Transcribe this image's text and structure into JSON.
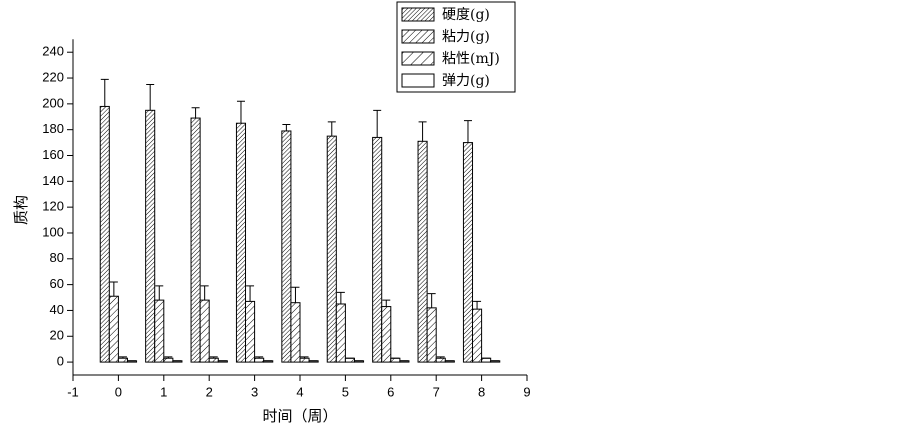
{
  "chart_data": {
    "type": "bar",
    "x_label": "时间（周）",
    "y_label": "质构",
    "categories": [
      0,
      1,
      2,
      3,
      4,
      5,
      6,
      7,
      8
    ],
    "series": [
      {
        "name": "硬度(g)",
        "color": "#000000",
        "pattern": "dense-hatch",
        "values": [
          198,
          195,
          189,
          185,
          179,
          175,
          174,
          171,
          170
        ],
        "errors": [
          21,
          20,
          8,
          17,
          5,
          11,
          21,
          15,
          17
        ]
      },
      {
        "name": "粘力(g)",
        "color": "#000000",
        "pattern": "hatch",
        "values": [
          51,
          48,
          48,
          47,
          46,
          45,
          43,
          42,
          41
        ],
        "errors": [
          11,
          11,
          11,
          12,
          12,
          9,
          5,
          11,
          6
        ]
      },
      {
        "name": "粘性(mJ)",
        "color": "#000000",
        "pattern": "wide-hatch",
        "values": [
          3,
          3,
          3,
          3,
          3,
          3,
          3,
          3,
          3
        ],
        "errors": [
          1,
          1,
          1,
          1,
          1,
          0,
          0,
          1,
          0
        ]
      },
      {
        "name": "弹力(g)",
        "color": "#000000",
        "pattern": "none",
        "values": [
          1,
          1,
          1,
          1,
          1,
          1,
          1,
          1,
          1
        ],
        "errors": [
          0,
          0,
          0,
          0,
          0,
          0,
          0,
          0,
          0
        ]
      }
    ],
    "xlim": [
      -1,
      9
    ],
    "xticks": [
      -1,
      0,
      1,
      2,
      3,
      4,
      5,
      6,
      7,
      8,
      9
    ],
    "ylim": [
      -10,
      250
    ],
    "yticks": [
      0,
      20,
      40,
      60,
      80,
      100,
      120,
      140,
      160,
      180,
      200,
      220,
      240
    ],
    "legend": "top-right"
  }
}
